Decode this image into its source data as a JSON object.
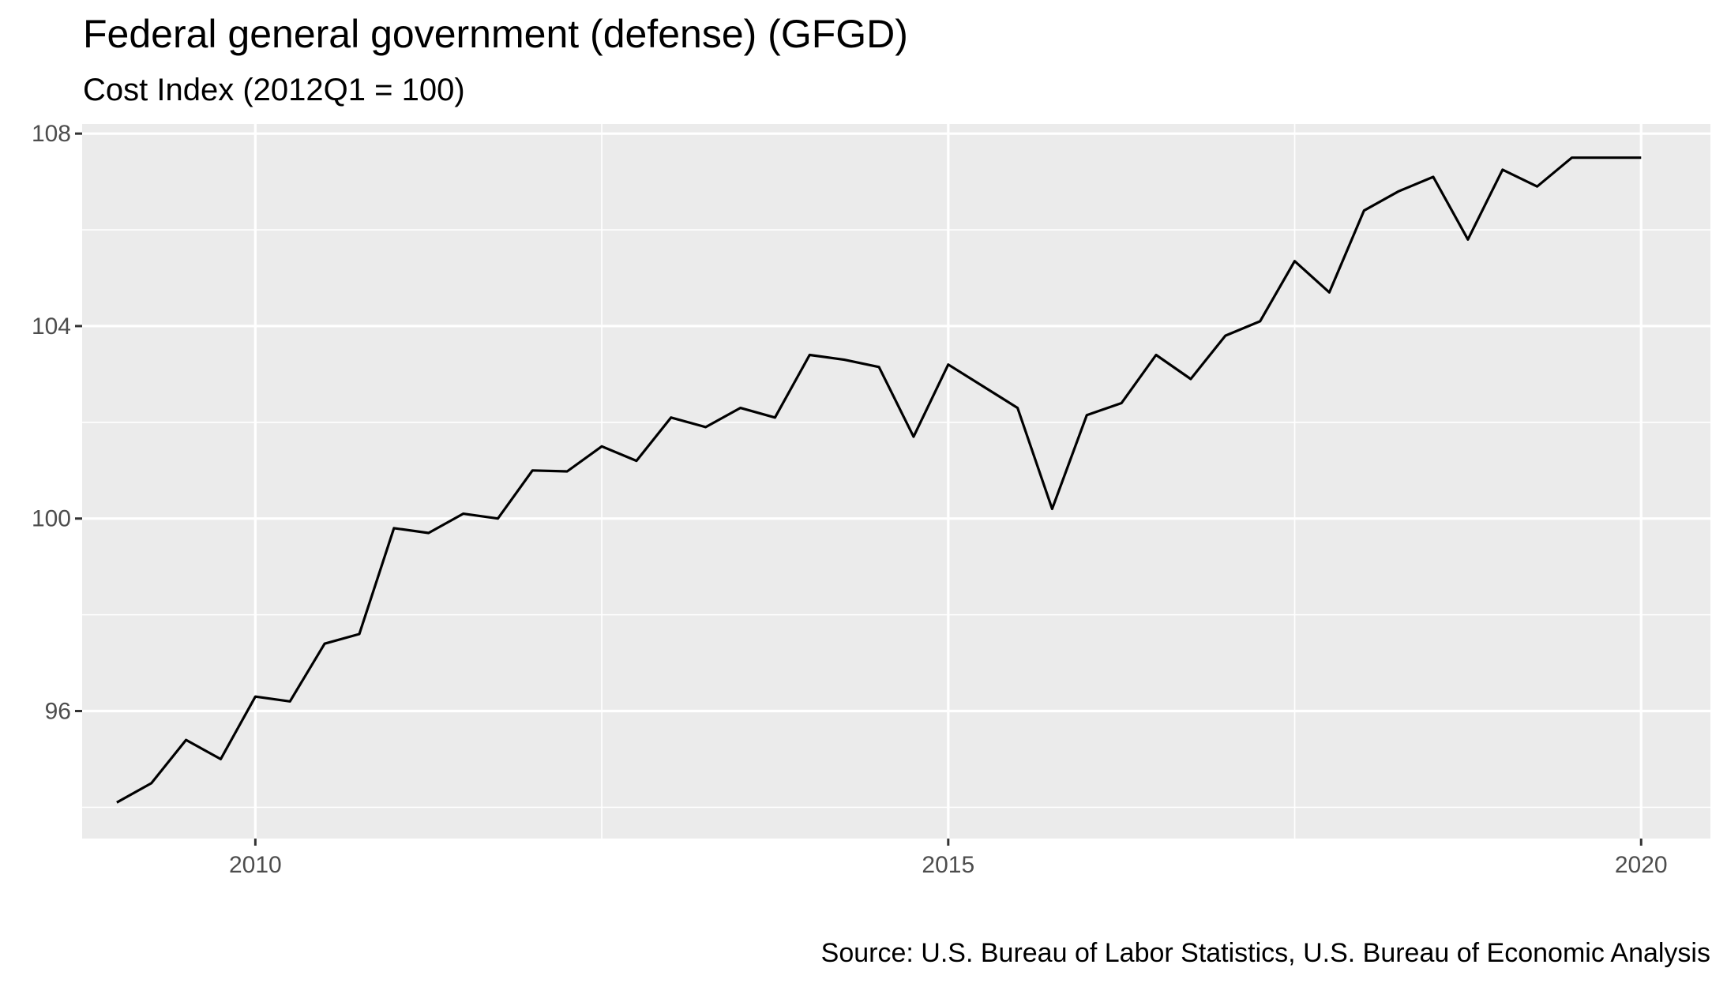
{
  "chart_data": {
    "type": "line",
    "title": "Federal general government (defense) (GFGD)",
    "subtitle": "Cost Index (2012Q1 = 100)",
    "caption": "Source: U.S. Bureau of Labor Statistics, U.S. Bureau of Economic Analysis",
    "xlabel": "",
    "ylabel": "",
    "xlim": [
      2008.75,
      2020.5
    ],
    "ylim": [
      93.35,
      108.2
    ],
    "x_ticks": [
      {
        "value": 2010,
        "label": "2010"
      },
      {
        "value": 2015,
        "label": "2015"
      },
      {
        "value": 2020,
        "label": "2020"
      }
    ],
    "y_ticks": [
      {
        "value": 96,
        "label": "96"
      },
      {
        "value": 100,
        "label": "100"
      },
      {
        "value": 104,
        "label": "104"
      },
      {
        "value": 108,
        "label": "108"
      }
    ],
    "grid": true,
    "line_color": "#000000",
    "panel_color": "#ebebeb",
    "grid_color": "#ffffff",
    "series": [
      {
        "x": [
          2009.0,
          2009.25,
          2009.5,
          2009.75,
          2010.0,
          2010.25,
          2010.5,
          2010.75,
          2011.0,
          2011.25,
          2011.5,
          2011.75,
          2012.0,
          2012.25,
          2012.5,
          2012.75,
          2013.0,
          2013.25,
          2013.5,
          2013.75,
          2014.0,
          2014.25,
          2014.5,
          2014.75,
          2015.0,
          2015.25,
          2015.5,
          2015.75,
          2016.0,
          2016.25,
          2016.5,
          2016.75,
          2017.0,
          2017.25,
          2017.5,
          2017.75,
          2018.0,
          2018.25,
          2018.5,
          2018.75,
          2019.0,
          2019.25,
          2019.5,
          2019.75,
          2020.0
        ],
        "values": [
          94.1,
          94.5,
          95.4,
          95.0,
          96.3,
          96.2,
          97.4,
          97.6,
          99.8,
          99.7,
          100.1,
          100.0,
          101.0,
          100.98,
          101.5,
          101.2,
          102.1,
          101.9,
          102.3,
          102.1,
          103.4,
          103.3,
          103.15,
          101.7,
          103.2,
          102.75,
          102.3,
          100.2,
          102.15,
          102.4,
          103.4,
          102.9,
          103.8,
          104.1,
          105.35,
          104.7,
          106.4,
          106.8,
          107.1,
          105.8,
          107.25,
          106.9,
          107.5,
          107.5,
          107.5
        ]
      }
    ]
  }
}
